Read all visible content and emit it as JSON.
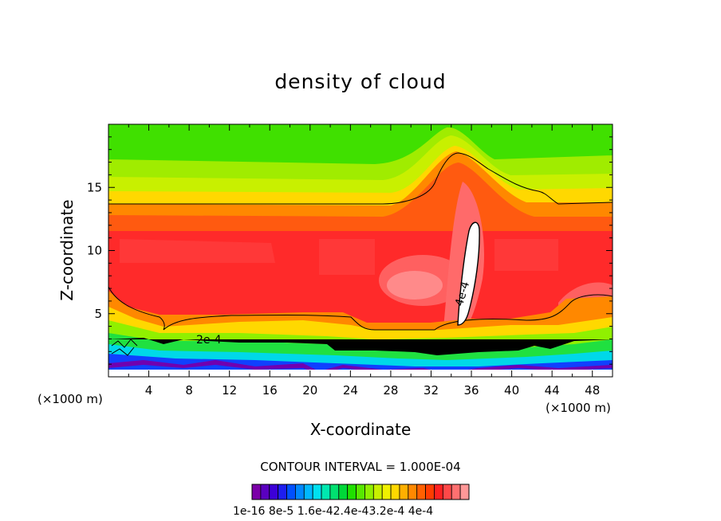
{
  "chart_data": {
    "type": "contour",
    "title": "density of cloud",
    "xlabel": "X-coordinate",
    "ylabel": "Z-coordinate",
    "x_unit_label": "(×1000 m)",
    "x_ticks": [
      4,
      8,
      12,
      16,
      20,
      24,
      28,
      32,
      36,
      40,
      44,
      48
    ],
    "y_ticks": [
      5,
      10,
      15
    ],
    "xlim": [
      0,
      50
    ],
    "ylim": [
      0,
      20
    ],
    "contour_interval_text": "CONTOUR INTERVAL = 1.000E-04",
    "contour_line_labels": [
      "2e-4",
      "4e-4"
    ],
    "colorbar_labels_text": "1e-16 8e-5 1.6e-42.4e-43.2e-4 4e-4",
    "colorbar_colors": [
      "#7b00a8",
      "#5a00c0",
      "#3c00d8",
      "#1e1ef0",
      "#0050ff",
      "#0088ff",
      "#00b8ff",
      "#00e0f0",
      "#00e8b0",
      "#00e070",
      "#00d838",
      "#20e000",
      "#58e800",
      "#90f000",
      "#c8f000",
      "#f0f000",
      "#ffd800",
      "#ffb000",
      "#ff8800",
      "#ff6000",
      "#ff3c00",
      "#ff2020",
      "#ff4848",
      "#ff7070",
      "#ff9898"
    ],
    "field_colors": {
      "top": "#40e000",
      "upper": "#c8f000",
      "band_yellow": "#ffd800",
      "band_orange": "#ff8800",
      "core": "#ff2a2a",
      "core_light": "#ff6060",
      "peak": "#ffffff",
      "low_green": "#20e040",
      "low_cyan": "#00d8e8",
      "low_blue": "#1040ff",
      "low_purple": "#7000b0"
    }
  }
}
